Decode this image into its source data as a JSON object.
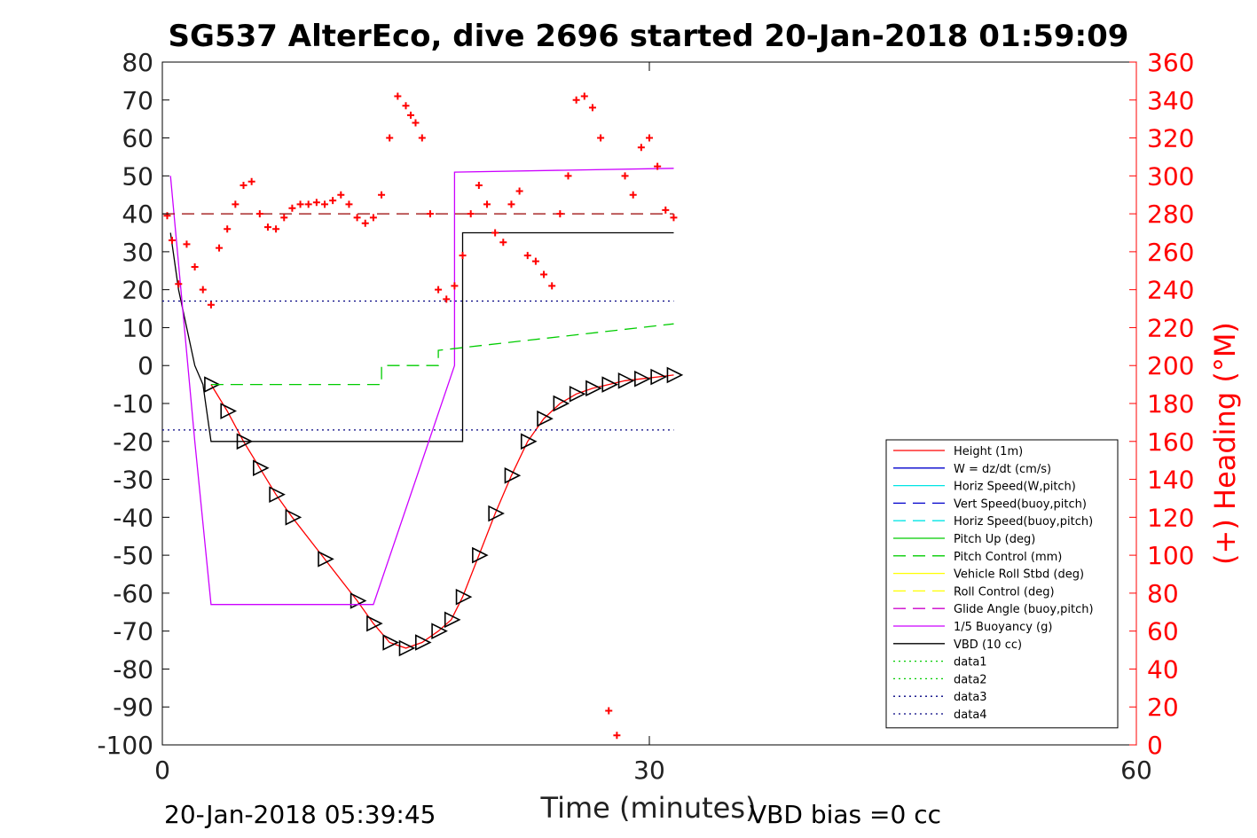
{
  "footer": {
    "timestamp": "20-Jan-2018 05:39:45",
    "vbd_bias": "VBD bias =0 cc"
  },
  "chart_data": {
    "type": "line",
    "title": "SG537 AlterEco, dive 2696 started 20-Jan-2018 01:59:09",
    "xlabel": "Time (minutes)",
    "ylabel": "",
    "ylabel_right": "(+) Heading (°M)",
    "xlim": [
      0,
      60
    ],
    "ylim": [
      -100,
      80
    ],
    "ylim_right": [
      0,
      360
    ],
    "x_ticks": [
      "0",
      "30",
      "60"
    ],
    "y_ticks": [
      "80",
      "70",
      "60",
      "50",
      "40",
      "30",
      "20",
      "10",
      "0",
      "-10",
      "-20",
      "-30",
      "-40",
      "-50",
      "-60",
      "-70",
      "-80",
      "-90",
      "-100"
    ],
    "y_ticks_right": [
      "360",
      "340",
      "320",
      "300",
      "280",
      "260",
      "240",
      "220",
      "200",
      "180",
      "160",
      "140",
      "120",
      "100",
      "80",
      "60",
      "40",
      "20",
      "0"
    ],
    "grid": false,
    "legend_position": "bottom-right",
    "colors": {
      "axis_right": "#ff0000",
      "height": "#ff0000",
      "w": "#0000cc",
      "horiz_speed": "#00e5e5",
      "pitch": "#00cc00",
      "roll": "#ffff00",
      "glide": "#cc00cc",
      "buoyancy": "#cc00ff",
      "vbd": "#000000",
      "data34": "#000080"
    },
    "legend": [
      {
        "label": "Height (1m)",
        "color": "#ff0000",
        "dash": "solid"
      },
      {
        "label": "W = dz/dt (cm/s)",
        "color": "#0000cc",
        "dash": "solid"
      },
      {
        "label": "Horiz Speed(W,pitch)",
        "color": "#00e5e5",
        "dash": "solid"
      },
      {
        "label": "Vert Speed(buoy,pitch)",
        "color": "#0000cc",
        "dash": "dashed"
      },
      {
        "label": "Horiz Speed(buoy,pitch)",
        "color": "#00e5e5",
        "dash": "dashed"
      },
      {
        "label": "Pitch Up (deg)",
        "color": "#00cc00",
        "dash": "solid"
      },
      {
        "label": "Pitch Control (mm)",
        "color": "#00cc00",
        "dash": "dashed"
      },
      {
        "label": "Vehicle Roll Stbd (deg)",
        "color": "#ffff00",
        "dash": "solid"
      },
      {
        "label": "Roll Control (deg)",
        "color": "#ffff00",
        "dash": "dashed"
      },
      {
        "label": "Glide Angle (buoy,pitch)",
        "color": "#cc00cc",
        "dash": "dashed"
      },
      {
        "label": "1/5 Buoyancy (g)",
        "color": "#cc00ff",
        "dash": "solid"
      },
      {
        "label": "VBD (10 cc)",
        "color": "#000000",
        "dash": "solid"
      },
      {
        "label": "data1",
        "color": "#00cc00",
        "dash": "dotted"
      },
      {
        "label": "data2",
        "color": "#00cc00",
        "dash": "dotted"
      },
      {
        "label": "data3",
        "color": "#000080",
        "dash": "dotted"
      },
      {
        "label": "data4",
        "color": "#000080",
        "dash": "dotted"
      }
    ],
    "series": [
      {
        "key": "depth",
        "color": "#ff0000",
        "dash": "solid",
        "x": [
          3,
          4,
          5,
          6,
          7,
          8,
          10,
          12,
          13,
          14,
          15,
          16,
          17,
          17.8,
          18.5,
          19.5,
          20.5,
          21.5,
          22.5,
          23.5,
          24.5,
          25.5,
          26.5,
          27.5,
          28.5,
          29.5,
          30.5,
          31.5
        ],
        "y": [
          -5,
          -12,
          -20,
          -27,
          -34,
          -40,
          -51,
          -62,
          -68,
          -73,
          -74.5,
          -73,
          -70,
          -67,
          -61,
          -50,
          -39,
          -29,
          -20,
          -14,
          -10,
          -7.5,
          -6,
          -5,
          -4,
          -3.5,
          -3,
          -2.5
        ]
      },
      {
        "key": "vbd",
        "color": "#000000",
        "dash": "solid",
        "x": [
          0.5,
          1,
          2,
          2.5,
          3,
          18.5,
          18.5,
          31.5
        ],
        "y": [
          35,
          20,
          0,
          -5,
          -20,
          -20,
          35,
          35
        ]
      },
      {
        "key": "buoyancy",
        "color": "#cc00ff",
        "dash": "solid",
        "x": [
          0.5,
          2,
          3,
          13,
          18,
          18,
          31.5
        ],
        "y": [
          50,
          -20,
          -63,
          -63,
          0,
          51,
          52
        ]
      },
      {
        "key": "pitch_control",
        "color": "#00cc00",
        "dash": "dashed",
        "x": [
          3,
          13.5,
          13.5,
          17,
          17,
          31.5
        ],
        "y": [
          -5,
          -5,
          0,
          0,
          4,
          11
        ]
      },
      {
        "key": "data3",
        "color": "#000080",
        "dash": "dotted",
        "x": [
          0,
          31.5
        ],
        "y": [
          17,
          17
        ]
      },
      {
        "key": "data4",
        "color": "#000080",
        "dash": "dotted",
        "x": [
          0,
          31.5
        ],
        "y": [
          -17,
          -17
        ]
      },
      {
        "key": "heading_ref",
        "color": "#990000",
        "dash": "dashed",
        "x": [
          0,
          31.5
        ],
        "y": [
          40,
          40
        ]
      }
    ],
    "heading_points": {
      "x": [
        0.3,
        0.6,
        1,
        1.5,
        2,
        2.5,
        3,
        3.5,
        4,
        4.5,
        5,
        5.5,
        6,
        6.5,
        7,
        7.5,
        8,
        8.5,
        9,
        9.5,
        10,
        10.5,
        11,
        11.5,
        12,
        12.5,
        13,
        13.5,
        14,
        14.5,
        15,
        15.3,
        15.6,
        16,
        16.5,
        17,
        17.5,
        18,
        18.5,
        19,
        19.5,
        20,
        20.5,
        21,
        21.5,
        22,
        22.5,
        23,
        23.5,
        24,
        24.5,
        25,
        25.5,
        26,
        26.5,
        27,
        27.5,
        28,
        28.5,
        29,
        29.5,
        30,
        30.5,
        31,
        31.5
      ],
      "y": [
        279,
        266,
        243,
        264,
        252,
        240,
        232,
        262,
        272,
        285,
        295,
        297,
        280,
        273,
        272,
        278,
        283,
        285,
        285,
        286,
        285,
        287,
        290,
        285,
        278,
        275,
        278,
        290,
        320,
        342,
        337,
        332,
        328,
        320,
        280,
        240,
        235,
        242,
        258,
        280,
        295,
        285,
        270,
        265,
        285,
        292,
        258,
        255,
        248,
        242,
        280,
        300,
        340,
        342,
        336,
        320,
        18,
        5,
        300,
        290,
        315,
        320,
        305,
        282,
        278
      ]
    }
  }
}
